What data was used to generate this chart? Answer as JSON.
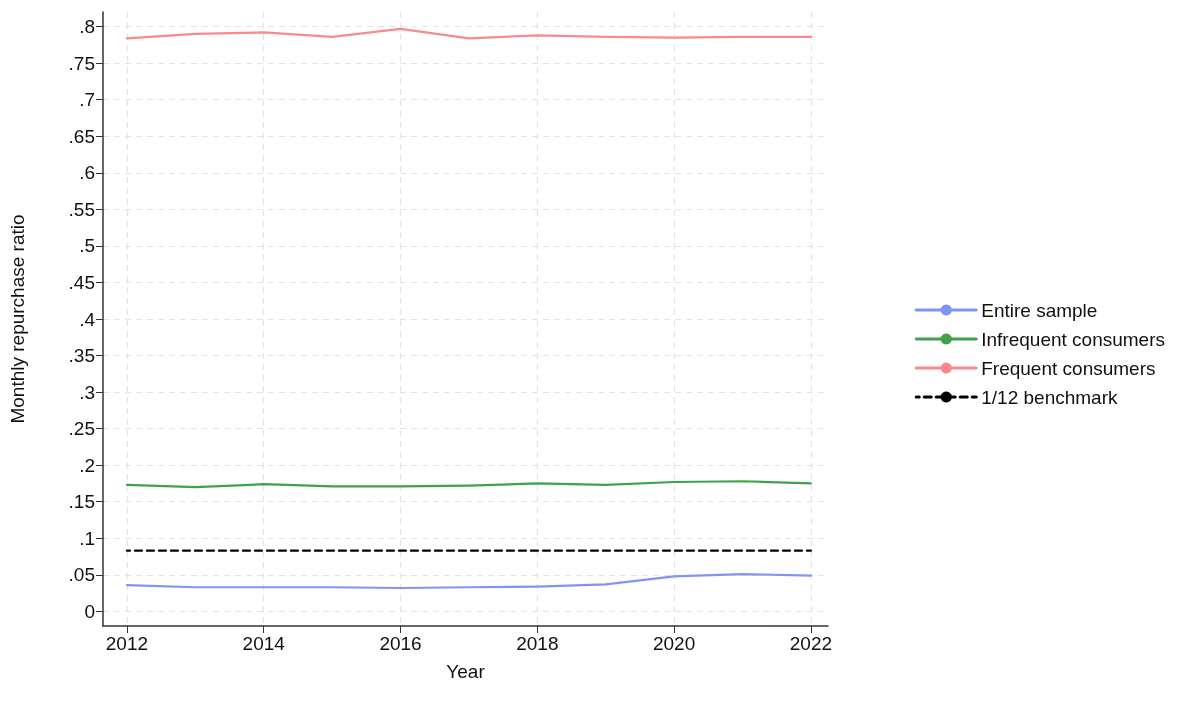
{
  "chart_data": {
    "type": "line",
    "xlabel": "Year",
    "ylabel": "Monthly repurchase ratio",
    "x": [
      2012,
      2013,
      2014,
      2015,
      2016,
      2017,
      2018,
      2019,
      2020,
      2021,
      2022
    ],
    "series": [
      {
        "name": "Entire sample",
        "color": "#8094f5",
        "values": [
          0.036,
          0.033,
          0.033,
          0.033,
          0.032,
          0.033,
          0.034,
          0.037,
          0.048,
          0.051,
          0.049
        ]
      },
      {
        "name": "Infrequent consumers",
        "color": "#3fa34d",
        "values": [
          0.173,
          0.17,
          0.174,
          0.171,
          0.171,
          0.172,
          0.175,
          0.173,
          0.177,
          0.178,
          0.175
        ]
      },
      {
        "name": "Frequent consumers",
        "color": "#f98a8a",
        "values": [
          0.784,
          0.79,
          0.792,
          0.786,
          0.797,
          0.784,
          0.788,
          0.786,
          0.785,
          0.786,
          0.786
        ]
      },
      {
        "name": "1/12 benchmark",
        "color": "#000000",
        "line_style": "dashed",
        "values": [
          0.083,
          0.083,
          0.083,
          0.083,
          0.083,
          0.083,
          0.083,
          0.083,
          0.083,
          0.083,
          0.083
        ]
      }
    ],
    "xlim": [
      2011.65,
      2022.25
    ],
    "xticks": [
      2012,
      2014,
      2016,
      2018,
      2020,
      2022
    ],
    "ylim": [
      -0.02,
      0.82
    ],
    "yticks": [
      0,
      {
        "value": 0.05,
        "label": ".05"
      },
      {
        "value": 0.1,
        "label": ".1"
      },
      {
        "value": 0.15,
        "label": ".15"
      },
      {
        "value": 0.2,
        "label": ".2"
      },
      {
        "value": 0.25,
        "label": ".25"
      },
      {
        "value": 0.3,
        "label": ".3"
      },
      {
        "value": 0.35,
        "label": ".35"
      },
      {
        "value": 0.4,
        "label": ".4"
      },
      {
        "value": 0.45,
        "label": ".45"
      },
      {
        "value": 0.5,
        "label": ".5"
      },
      {
        "value": 0.55,
        "label": ".55"
      },
      {
        "value": 0.6,
        "label": ".6"
      },
      {
        "value": 0.65,
        "label": ".65"
      },
      {
        "value": 0.7,
        "label": ".7"
      },
      {
        "value": 0.75,
        "label": ".75"
      },
      {
        "value": 0.8,
        "label": ".8"
      }
    ],
    "grid": true,
    "legend": "right",
    "marker": "none",
    "line_style": "solid"
  }
}
